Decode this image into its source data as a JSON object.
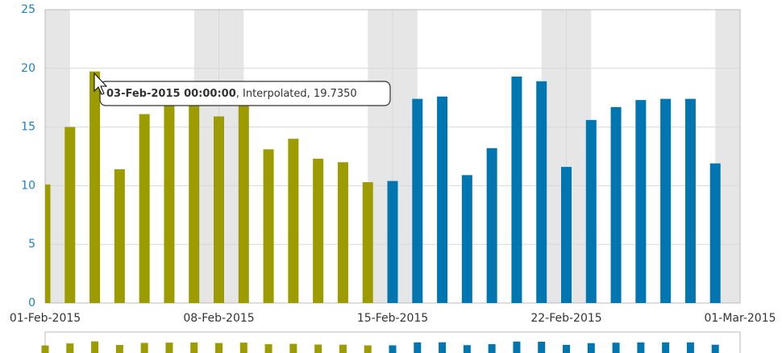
{
  "chart_data": {
    "type": "bar",
    "x": [
      "2015-02-01",
      "2015-02-02",
      "2015-02-03",
      "2015-02-04",
      "2015-02-05",
      "2015-02-06",
      "2015-02-07",
      "2015-02-08",
      "2015-02-09",
      "2015-02-10",
      "2015-02-11",
      "2015-02-12",
      "2015-02-13",
      "2015-02-14",
      "2015-02-15",
      "2015-02-16",
      "2015-02-17",
      "2015-02-18",
      "2015-02-19",
      "2015-02-20",
      "2015-02-21",
      "2015-02-22",
      "2015-02-23",
      "2015-02-24",
      "2015-02-25",
      "2015-02-26",
      "2015-02-27",
      "2015-02-28"
    ],
    "series": [
      {
        "color": "#9c9c00",
        "values": [
          10.1,
          15.0,
          19.735,
          11.4,
          16.1,
          16.8,
          17.0,
          15.9,
          16.8,
          13.1,
          14.0,
          12.3,
          12.0,
          10.3,
          null,
          null,
          null,
          null,
          null,
          null,
          null,
          null,
          null,
          null,
          null,
          null,
          null,
          null
        ]
      },
      {
        "color": "#0076b0",
        "values": [
          null,
          null,
          null,
          null,
          null,
          null,
          null,
          null,
          null,
          null,
          null,
          null,
          null,
          null,
          10.4,
          17.4,
          17.6,
          10.9,
          13.2,
          19.3,
          18.9,
          11.6,
          15.6,
          16.7,
          17.3,
          17.4,
          17.4,
          11.9
        ]
      }
    ],
    "xlim": [
      "2015-02-01",
      "2015-03-01"
    ],
    "xticks": [
      {
        "value": "2015-02-01",
        "label": "01-Feb-2015"
      },
      {
        "value": "2015-02-08",
        "label": "08-Feb-2015"
      },
      {
        "value": "2015-02-15",
        "label": "15-Feb-2015"
      },
      {
        "value": "2015-02-22",
        "label": "22-Feb-2015"
      },
      {
        "value": "2015-03-01",
        "label": "01-Mar-2015"
      }
    ],
    "ylim": [
      0,
      25
    ],
    "yticks": [
      0,
      5,
      10,
      15,
      20,
      25
    ],
    "grid": true,
    "tooltip": {
      "label": "03-Feb-2015 00:00:00",
      "detail": ", Interpolated, 19.7350"
    }
  }
}
